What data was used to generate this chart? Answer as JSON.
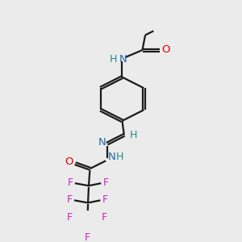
{
  "background_color": "#ebebeb",
  "bond_color": "#1a1a1a",
  "N_color": "#2266aa",
  "O_color": "#dd0000",
  "F_color": "#cc22cc",
  "H_color": "#228888",
  "line_width": 1.6,
  "figsize": [
    3.0,
    3.0
  ],
  "dpi": 100,
  "xlim": [
    0,
    10
  ],
  "ylim": [
    0,
    10
  ]
}
